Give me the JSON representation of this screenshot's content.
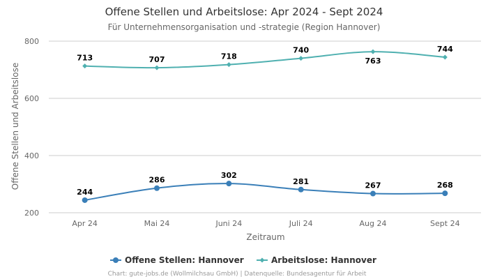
{
  "chart_data": {
    "type": "line",
    "title": "Offene Stellen und Arbeitslose: Apr 2024 - Sept 2024",
    "subtitle": "Für Unternehmensorganisation und -strategie (Region Hannover)",
    "xlabel": "Zeitraum",
    "ylabel": "Offene Stellen und Arbeitslose",
    "categories": [
      "Apr 24",
      "Mai 24",
      "Juni 24",
      "Juli 24",
      "Aug 24",
      "Sept 24"
    ],
    "ylim": [
      200,
      800
    ],
    "yticks": [
      200,
      400,
      600,
      800
    ],
    "grid": true,
    "legend_position": "bottom-center",
    "series": [
      {
        "name": "Offene Stellen: Hannover",
        "color": "#3a7fb8",
        "marker": "circle",
        "values": [
          244,
          286,
          302,
          281,
          267,
          268
        ],
        "label_position": [
          "above",
          "above",
          "above",
          "above",
          "above",
          "above"
        ]
      },
      {
        "name": "Arbeitslose: Hannover",
        "color": "#4fb0b0",
        "marker": "diamond",
        "values": [
          713,
          707,
          718,
          740,
          763,
          744
        ],
        "label_position": [
          "above",
          "above",
          "above",
          "above",
          "below",
          "above"
        ]
      }
    ],
    "credits": "Chart: gute-jobs.de (Wollmilchsau GmbH) | Datenquelle: Bundesagentur für Arbeit"
  }
}
